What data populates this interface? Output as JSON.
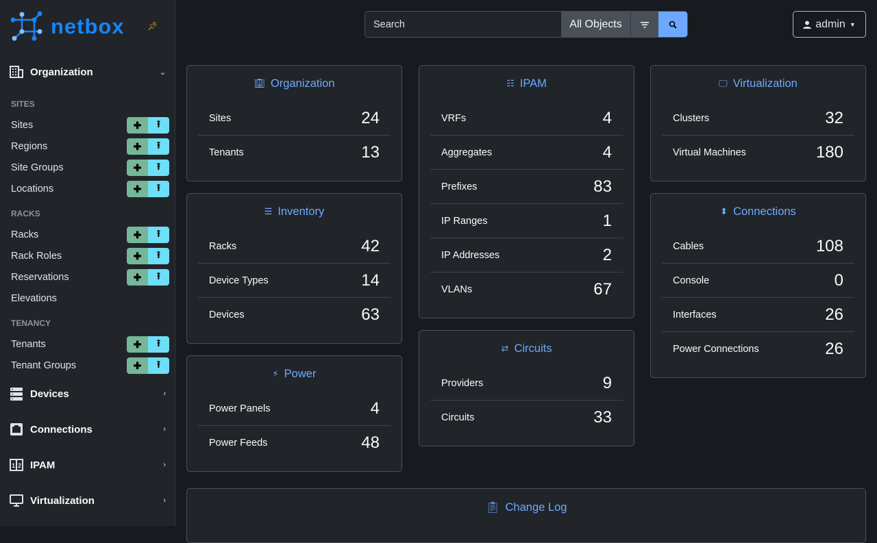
{
  "brand": {
    "name": "netbox"
  },
  "sidebar": {
    "organization": "Organization",
    "sections": [
      {
        "title": "SITES",
        "items": [
          {
            "label": "Sites",
            "buttons": true
          },
          {
            "label": "Regions",
            "buttons": true
          },
          {
            "label": "Site Groups",
            "buttons": true
          },
          {
            "label": "Locations",
            "buttons": true
          }
        ]
      },
      {
        "title": "RACKS",
        "items": [
          {
            "label": "Racks",
            "buttons": true
          },
          {
            "label": "Rack Roles",
            "buttons": true
          },
          {
            "label": "Reservations",
            "buttons": true
          },
          {
            "label": "Elevations",
            "buttons": false
          }
        ]
      },
      {
        "title": "TENANCY",
        "items": [
          {
            "label": "Tenants",
            "buttons": true
          },
          {
            "label": "Tenant Groups",
            "buttons": true
          }
        ]
      }
    ],
    "menus": [
      "Devices",
      "Connections",
      "IPAM",
      "Virtualization"
    ]
  },
  "search": {
    "placeholder": "Search",
    "scope": "All Objects"
  },
  "user": {
    "name": "admin"
  },
  "colors": {
    "accent": "#6ea8fe",
    "add": "#75b798",
    "import": "#6edff6",
    "brand": "#1685fc"
  },
  "columns": [
    [
      {
        "title": "Organization",
        "icon": "building-icon",
        "rows": [
          [
            "Sites",
            "24"
          ],
          [
            "Tenants",
            "13"
          ]
        ]
      },
      {
        "title": "Inventory",
        "icon": "server-icon",
        "rows": [
          [
            "Racks",
            "42"
          ],
          [
            "Device Types",
            "14"
          ],
          [
            "Devices",
            "63"
          ]
        ]
      },
      {
        "title": "Power",
        "icon": "lightning-icon",
        "rows": [
          [
            "Power Panels",
            "4"
          ],
          [
            "Power Feeds",
            "48"
          ]
        ]
      }
    ],
    [
      {
        "title": "IPAM",
        "icon": "ipam-icon",
        "rows": [
          [
            "VRFs",
            "4"
          ],
          [
            "Aggregates",
            "4"
          ],
          [
            "Prefixes",
            "83"
          ],
          [
            "IP Ranges",
            "1"
          ],
          [
            "IP Addresses",
            "2"
          ],
          [
            "VLANs",
            "67"
          ]
        ]
      },
      {
        "title": "Circuits",
        "icon": "circuit-icon",
        "rows": [
          [
            "Providers",
            "9"
          ],
          [
            "Circuits",
            "33"
          ]
        ]
      }
    ],
    [
      {
        "title": "Virtualization",
        "icon": "monitor-icon",
        "rows": [
          [
            "Clusters",
            "32"
          ],
          [
            "Virtual Machines",
            "180"
          ]
        ]
      },
      {
        "title": "Connections",
        "icon": "cable-icon",
        "rows": [
          [
            "Cables",
            "108"
          ],
          [
            "Console",
            "0"
          ],
          [
            "Interfaces",
            "26"
          ],
          [
            "Power Connections",
            "26"
          ]
        ]
      }
    ]
  ],
  "changelog": {
    "title": "Change Log"
  }
}
